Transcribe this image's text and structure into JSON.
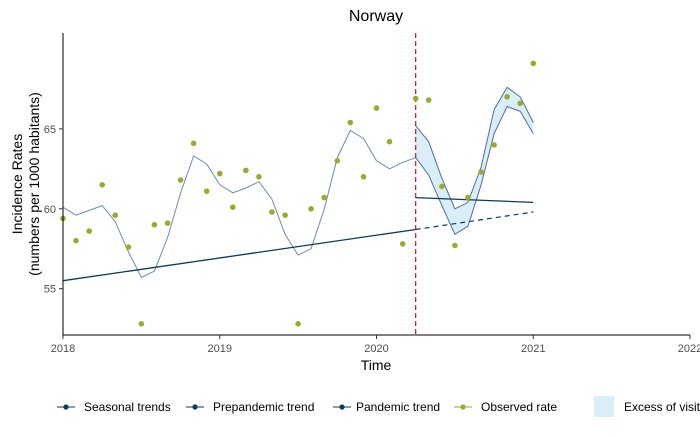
{
  "chart_data": {
    "type": "line",
    "title": "Norway",
    "xlabel": "Time",
    "ylabel_lines": [
      "Incidence Rates",
      "(numbers per 1000 habitants)"
    ],
    "xlim": [
      2018.0,
      2022.0
    ],
    "ylim": [
      52.1,
      71.0
    ],
    "x_ticks": [
      2018,
      2019,
      2020,
      2021,
      2022
    ],
    "y_ticks": [
      55,
      60,
      65
    ],
    "grid": false,
    "legend_position": "bottom",
    "intervention_x": 2020.25,
    "colors": {
      "seasonal": "#6b8cb5",
      "prepandemic": "#0b3a5e",
      "pandemic": "#0b3a5e",
      "observed": "#9aab2a",
      "excess_fill": "#daeef8",
      "excess_stroke": "#4a6fa5",
      "intervention": "#c0181d"
    },
    "series": [
      {
        "name": "Seasonal trends",
        "x": [
          2018.0,
          2018.083,
          2018.167,
          2018.25,
          2018.333,
          2018.417,
          2018.5,
          2018.583,
          2018.667,
          2018.75,
          2018.833,
          2018.917,
          2019.0,
          2019.083,
          2019.167,
          2019.25,
          2019.333,
          2019.417,
          2019.5,
          2019.583,
          2019.667,
          2019.75,
          2019.833,
          2019.917,
          2020.0,
          2020.083,
          2020.167,
          2020.25
        ],
        "y": [
          60.1,
          59.6,
          59.9,
          60.2,
          59.2,
          57.3,
          55.7,
          56.1,
          58.2,
          61.0,
          63.3,
          62.8,
          61.5,
          61.0,
          61.3,
          61.7,
          60.6,
          58.4,
          57.1,
          57.5,
          60.0,
          63.2,
          64.9,
          64.4,
          63.0,
          62.5,
          62.9,
          63.2
        ]
      },
      {
        "name": "Prepandemic trend",
        "x": [
          2018.0,
          2020.25
        ],
        "y": [
          55.5,
          58.7
        ],
        "projection_x": [
          2020.25,
          2021.0
        ],
        "projection_y": [
          58.7,
          59.8
        ]
      },
      {
        "name": "Pandemic trend",
        "x": [
          2020.25,
          2021.0
        ],
        "y": [
          60.7,
          60.4
        ]
      },
      {
        "name": "Observed rate",
        "x": [
          2018.0,
          2018.083,
          2018.167,
          2018.25,
          2018.333,
          2018.417,
          2018.5,
          2018.583,
          2018.667,
          2018.75,
          2018.833,
          2018.917,
          2019.0,
          2019.083,
          2019.167,
          2019.25,
          2019.333,
          2019.417,
          2019.5,
          2019.583,
          2019.667,
          2019.75,
          2019.833,
          2019.917,
          2020.0,
          2020.083,
          2020.167,
          2020.25,
          2020.333,
          2020.417,
          2020.5,
          2020.583,
          2020.667,
          2020.75,
          2020.833,
          2020.917,
          2021.0
        ],
        "y": [
          59.4,
          58.0,
          58.6,
          61.5,
          59.6,
          57.6,
          52.8,
          59.0,
          59.1,
          61.8,
          64.1,
          61.1,
          62.2,
          60.1,
          62.4,
          62.0,
          59.8,
          59.6,
          52.8,
          60.0,
          60.7,
          63.0,
          65.4,
          62.0,
          66.3,
          64.2,
          57.8,
          66.9,
          66.8,
          61.4,
          57.7,
          60.7,
          62.3,
          64.0,
          67.0,
          66.6,
          69.1
        ]
      }
    ],
    "excess_band": {
      "name": "Excess of visits",
      "x": [
        2020.25,
        2020.333,
        2020.417,
        2020.5,
        2020.583,
        2020.667,
        2020.75,
        2020.833,
        2020.917,
        2021.0
      ],
      "upper": [
        65.2,
        64.2,
        61.9,
        60.0,
        60.4,
        62.6,
        66.2,
        67.6,
        67.0,
        65.4
      ],
      "lower": [
        63.2,
        62.1,
        60.2,
        58.4,
        58.9,
        61.5,
        64.7,
        66.4,
        66.1,
        64.7
      ]
    }
  }
}
